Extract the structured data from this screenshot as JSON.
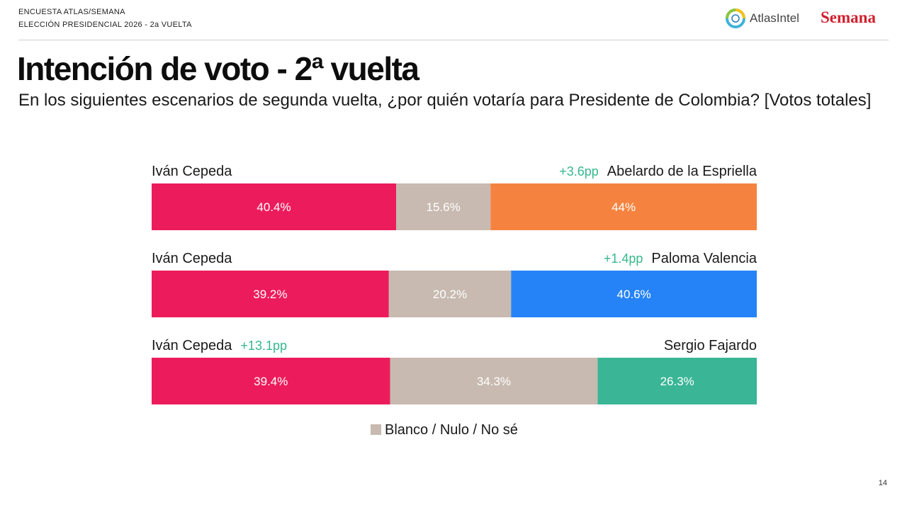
{
  "header": {
    "line1": "ENCUESTA ATLAS/SEMANA",
    "line2": "ELECCIÓN PRESIDENCIAL 2026 - 2a VUELTA",
    "logo_atlas": "AtlasIntel",
    "logo_semana": "Semana"
  },
  "title": "Intención de voto - 2ª vuelta",
  "subtitle": "En los siguientes escenarios de segunda vuelta, ¿por quién votaría para Presidente de Colombia? [Votos totales]",
  "page_number": "14",
  "colors": {
    "cepeda": "#ec1c5c",
    "blank": "#c8bab0",
    "espriella": "#f5833f",
    "valencia": "#2583f7",
    "fajardo": "#3ab596",
    "lead": "#35b88d"
  },
  "chart_data": {
    "type": "bar",
    "orientation": "horizontal-stacked-100",
    "legend": {
      "label": "Blanco / Nulo / No sé",
      "placement": "bottom-center"
    },
    "scenarios": [
      {
        "left_name": "Iván Cepeda",
        "right_name": "Abelardo de la Espriella",
        "lead_text": "+3.6pp",
        "lead_side": "right",
        "values": [
          40.4,
          15.6,
          44
        ],
        "labels": [
          "40.4%",
          "15.6%",
          "44%"
        ],
        "colors": [
          "#ec1c5c",
          "#c8bab0",
          "#f5833f"
        ]
      },
      {
        "left_name": "Iván Cepeda",
        "right_name": "Paloma Valencia",
        "lead_text": "+1.4pp",
        "lead_side": "right",
        "values": [
          39.2,
          20.2,
          40.6
        ],
        "labels": [
          "39.2%",
          "20.2%",
          "40.6%"
        ],
        "colors": [
          "#ec1c5c",
          "#c8bab0",
          "#2583f7"
        ]
      },
      {
        "left_name": "Iván Cepeda",
        "right_name": "Sergio Fajardo",
        "lead_text": "+13.1pp",
        "lead_side": "left",
        "values": [
          39.4,
          34.3,
          26.3
        ],
        "labels": [
          "39.4%",
          "34.3%",
          "26.3%"
        ],
        "colors": [
          "#ec1c5c",
          "#c8bab0",
          "#3ab596"
        ]
      }
    ]
  }
}
